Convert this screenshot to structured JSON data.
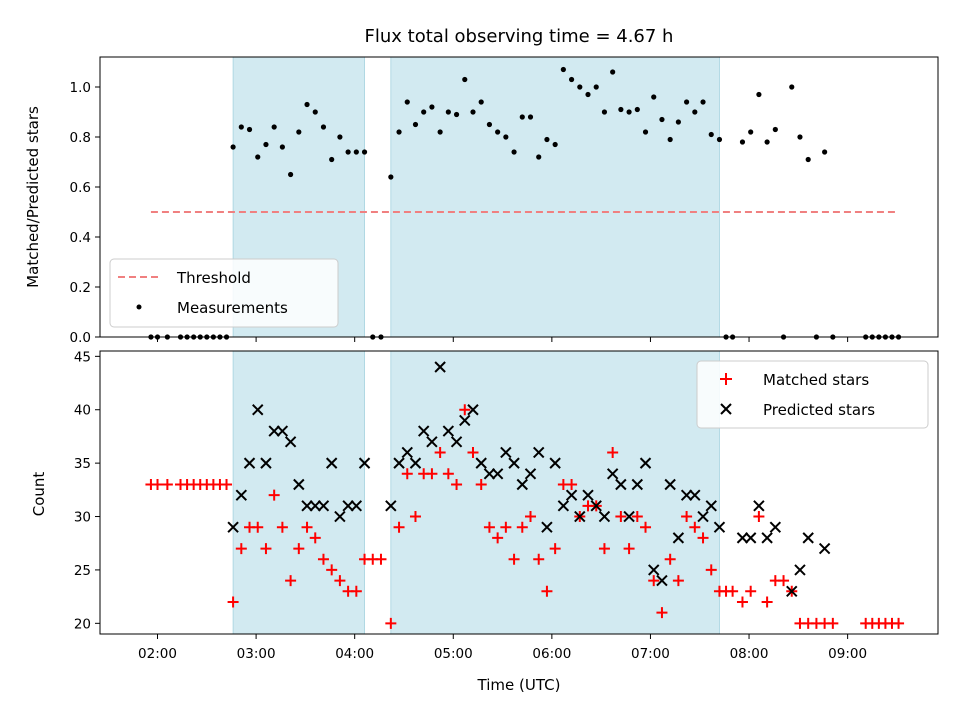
{
  "chart_data": [
    {
      "type": "scatter",
      "title": "Flux total observing time = 4.67 h",
      "xlabel": "",
      "ylabel": "Matched/Predicted stars",
      "ylim": [
        0,
        1.12
      ],
      "yticks": [
        "0.0",
        "0.2",
        "0.4",
        "0.6",
        "0.8",
        "1.0"
      ],
      "legend": {
        "position": "lower-left",
        "entries": [
          "Threshold",
          "Measurements"
        ]
      },
      "threshold": {
        "name": "Threshold",
        "value": 0.5,
        "x_range": [
          "01:56",
          "09:30"
        ],
        "color": "#f08080"
      },
      "shaded_intervals": [
        [
          "02:46",
          "04:06"
        ],
        [
          "04:22",
          "07:42"
        ]
      ],
      "shade_color": "#add8e6",
      "series": [
        {
          "name": "Measurements",
          "color": "#000000",
          "points": [
            [
              "01:56",
              0
            ],
            [
              "02:00",
              0
            ],
            [
              "02:06",
              0
            ],
            [
              "02:14",
              0
            ],
            [
              "02:18",
              0
            ],
            [
              "02:22",
              0
            ],
            [
              "02:26",
              0
            ],
            [
              "02:30",
              0
            ],
            [
              "02:34",
              0
            ],
            [
              "02:38",
              0
            ],
            [
              "02:42",
              0
            ],
            [
              "02:46",
              0.76
            ],
            [
              "02:51",
              0.84
            ],
            [
              "02:56",
              0.83
            ],
            [
              "03:01",
              0.72
            ],
            [
              "03:06",
              0.77
            ],
            [
              "03:11",
              0.84
            ],
            [
              "03:16",
              0.76
            ],
            [
              "03:21",
              0.65
            ],
            [
              "03:26",
              0.82
            ],
            [
              "03:31",
              0.93
            ],
            [
              "03:36",
              0.9
            ],
            [
              "03:41",
              0.84
            ],
            [
              "03:46",
              0.71
            ],
            [
              "03:51",
              0.8
            ],
            [
              "03:56",
              0.74
            ],
            [
              "04:01",
              0.74
            ],
            [
              "04:06",
              0.74
            ],
            [
              "04:11",
              0
            ],
            [
              "04:16",
              0
            ],
            [
              "04:22",
              0.64
            ],
            [
              "04:27",
              0.82
            ],
            [
              "04:32",
              0.94
            ],
            [
              "04:37",
              0.85
            ],
            [
              "04:42",
              0.9
            ],
            [
              "04:47",
              0.92
            ],
            [
              "04:52",
              0.82
            ],
            [
              "04:57",
              0.9
            ],
            [
              "05:02",
              0.89
            ],
            [
              "05:07",
              1.03
            ],
            [
              "05:12",
              0.9
            ],
            [
              "05:17",
              0.94
            ],
            [
              "05:22",
              0.85
            ],
            [
              "05:27",
              0.82
            ],
            [
              "05:32",
              0.8
            ],
            [
              "05:37",
              0.74
            ],
            [
              "05:42",
              0.88
            ],
            [
              "05:47",
              0.88
            ],
            [
              "05:52",
              0.72
            ],
            [
              "05:57",
              0.79
            ],
            [
              "06:02",
              0.77
            ],
            [
              "06:07",
              1.07
            ],
            [
              "06:12",
              1.03
            ],
            [
              "06:17",
              1.0
            ],
            [
              "06:22",
              0.97
            ],
            [
              "06:27",
              1.0
            ],
            [
              "06:32",
              0.9
            ],
            [
              "06:37",
              1.06
            ],
            [
              "06:42",
              0.91
            ],
            [
              "06:47",
              0.9
            ],
            [
              "06:52",
              0.91
            ],
            [
              "06:57",
              0.82
            ],
            [
              "07:02",
              0.96
            ],
            [
              "07:07",
              0.87
            ],
            [
              "07:12",
              0.79
            ],
            [
              "07:17",
              0.86
            ],
            [
              "07:22",
              0.94
            ],
            [
              "07:27",
              0.9
            ],
            [
              "07:32",
              0.94
            ],
            [
              "07:37",
              0.81
            ],
            [
              "07:42",
              0.79
            ],
            [
              "07:46",
              0
            ],
            [
              "07:50",
              0
            ],
            [
              "07:56",
              0.78
            ],
            [
              "08:01",
              0.82
            ],
            [
              "08:06",
              0.97
            ],
            [
              "08:11",
              0.78
            ],
            [
              "08:16",
              0.83
            ],
            [
              "08:21",
              0
            ],
            [
              "08:26",
              1.0
            ],
            [
              "08:31",
              0.8
            ],
            [
              "08:36",
              0.71
            ],
            [
              "08:41",
              0
            ],
            [
              "08:46",
              0.74
            ],
            [
              "08:51",
              0
            ],
            [
              "09:11",
              0
            ],
            [
              "09:15",
              0
            ],
            [
              "09:19",
              0
            ],
            [
              "09:23",
              0
            ],
            [
              "09:27",
              0
            ],
            [
              "09:31",
              0
            ]
          ]
        }
      ]
    },
    {
      "type": "scatter",
      "title": "",
      "xlabel": "Time (UTC)",
      "ylabel": "Count",
      "ylim": [
        19,
        45.5
      ],
      "yticks": [
        "20",
        "25",
        "30",
        "35",
        "40",
        "45"
      ],
      "xlim": [
        "01:25",
        "09:55"
      ],
      "xticks": [
        "02:00",
        "03:00",
        "04:00",
        "05:00",
        "06:00",
        "07:00",
        "08:00",
        "09:00"
      ],
      "legend": {
        "position": "top-right",
        "entries": [
          "Matched stars",
          "Predicted stars"
        ]
      },
      "shaded_intervals": [
        [
          "02:46",
          "04:06"
        ],
        [
          "04:22",
          "07:42"
        ]
      ],
      "shade_color": "#add8e6",
      "series": [
        {
          "name": "Matched stars",
          "color": "#ff0000",
          "marker": "plus",
          "points": [
            [
              "01:56",
              33
            ],
            [
              "02:00",
              33
            ],
            [
              "02:06",
              33
            ],
            [
              "02:14",
              33
            ],
            [
              "02:18",
              33
            ],
            [
              "02:22",
              33
            ],
            [
              "02:26",
              33
            ],
            [
              "02:30",
              33
            ],
            [
              "02:34",
              33
            ],
            [
              "02:38",
              33
            ],
            [
              "02:42",
              33
            ],
            [
              "02:46",
              22
            ],
            [
              "02:51",
              27
            ],
            [
              "02:56",
              29
            ],
            [
              "03:01",
              29
            ],
            [
              "03:06",
              27
            ],
            [
              "03:11",
              32
            ],
            [
              "03:16",
              29
            ],
            [
              "03:21",
              24
            ],
            [
              "03:26",
              27
            ],
            [
              "03:31",
              29
            ],
            [
              "03:36",
              28
            ],
            [
              "03:41",
              26
            ],
            [
              "03:46",
              25
            ],
            [
              "03:51",
              24
            ],
            [
              "03:56",
              23
            ],
            [
              "04:01",
              23
            ],
            [
              "04:06",
              26
            ],
            [
              "04:11",
              26
            ],
            [
              "04:16",
              26
            ],
            [
              "04:22",
              20
            ],
            [
              "04:27",
              29
            ],
            [
              "04:32",
              34
            ],
            [
              "04:37",
              30
            ],
            [
              "04:42",
              34
            ],
            [
              "04:47",
              34
            ],
            [
              "04:52",
              36
            ],
            [
              "04:57",
              34
            ],
            [
              "05:02",
              33
            ],
            [
              "05:07",
              40
            ],
            [
              "05:12",
              36
            ],
            [
              "05:17",
              33
            ],
            [
              "05:22",
              29
            ],
            [
              "05:27",
              28
            ],
            [
              "05:32",
              29
            ],
            [
              "05:37",
              26
            ],
            [
              "05:42",
              29
            ],
            [
              "05:47",
              30
            ],
            [
              "05:52",
              26
            ],
            [
              "05:57",
              23
            ],
            [
              "06:02",
              27
            ],
            [
              "06:07",
              33
            ],
            [
              "06:12",
              33
            ],
            [
              "06:17",
              30
            ],
            [
              "06:22",
              31
            ],
            [
              "06:27",
              31
            ],
            [
              "06:32",
              27
            ],
            [
              "06:37",
              36
            ],
            [
              "06:42",
              30
            ],
            [
              "06:47",
              27
            ],
            [
              "06:52",
              30
            ],
            [
              "06:57",
              29
            ],
            [
              "07:02",
              24
            ],
            [
              "07:07",
              21
            ],
            [
              "07:12",
              26
            ],
            [
              "07:17",
              24
            ],
            [
              "07:22",
              30
            ],
            [
              "07:27",
              29
            ],
            [
              "07:32",
              28
            ],
            [
              "07:37",
              25
            ],
            [
              "07:42",
              23
            ],
            [
              "07:46",
              23
            ],
            [
              "07:50",
              23
            ],
            [
              "07:56",
              22
            ],
            [
              "08:01",
              23
            ],
            [
              "08:06",
              30
            ],
            [
              "08:11",
              22
            ],
            [
              "08:16",
              24
            ],
            [
              "08:21",
              24
            ],
            [
              "08:26",
              23
            ],
            [
              "08:31",
              20
            ],
            [
              "08:36",
              20
            ],
            [
              "08:41",
              20
            ],
            [
              "08:46",
              20
            ],
            [
              "08:51",
              20
            ],
            [
              "09:11",
              20
            ],
            [
              "09:15",
              20
            ],
            [
              "09:19",
              20
            ],
            [
              "09:23",
              20
            ],
            [
              "09:27",
              20
            ],
            [
              "09:31",
              20
            ]
          ]
        },
        {
          "name": "Predicted stars",
          "color": "#000000",
          "marker": "x",
          "points": [
            [
              "02:46",
              29
            ],
            [
              "02:51",
              32
            ],
            [
              "02:56",
              35
            ],
            [
              "03:01",
              40
            ],
            [
              "03:06",
              35
            ],
            [
              "03:11",
              38
            ],
            [
              "03:16",
              38
            ],
            [
              "03:21",
              37
            ],
            [
              "03:26",
              33
            ],
            [
              "03:31",
              31
            ],
            [
              "03:36",
              31
            ],
            [
              "03:41",
              31
            ],
            [
              "03:46",
              35
            ],
            [
              "03:51",
              30
            ],
            [
              "03:56",
              31
            ],
            [
              "04:01",
              31
            ],
            [
              "04:06",
              35
            ],
            [
              "04:22",
              31
            ],
            [
              "04:27",
              35
            ],
            [
              "04:32",
              36
            ],
            [
              "04:37",
              35
            ],
            [
              "04:42",
              38
            ],
            [
              "04:47",
              37
            ],
            [
              "04:52",
              44
            ],
            [
              "04:57",
              38
            ],
            [
              "05:02",
              37
            ],
            [
              "05:07",
              39
            ],
            [
              "05:12",
              40
            ],
            [
              "05:17",
              35
            ],
            [
              "05:22",
              34
            ],
            [
              "05:27",
              34
            ],
            [
              "05:32",
              36
            ],
            [
              "05:37",
              35
            ],
            [
              "05:42",
              33
            ],
            [
              "05:47",
              34
            ],
            [
              "05:52",
              36
            ],
            [
              "05:57",
              29
            ],
            [
              "06:02",
              35
            ],
            [
              "06:07",
              31
            ],
            [
              "06:12",
              32
            ],
            [
              "06:17",
              30
            ],
            [
              "06:22",
              32
            ],
            [
              "06:27",
              31
            ],
            [
              "06:32",
              30
            ],
            [
              "06:37",
              34
            ],
            [
              "06:42",
              33
            ],
            [
              "06:47",
              30
            ],
            [
              "06:52",
              33
            ],
            [
              "06:57",
              35
            ],
            [
              "07:02",
              25
            ],
            [
              "07:07",
              24
            ],
            [
              "07:12",
              33
            ],
            [
              "07:17",
              28
            ],
            [
              "07:22",
              32
            ],
            [
              "07:27",
              32
            ],
            [
              "07:32",
              30
            ],
            [
              "07:37",
              31
            ],
            [
              "07:42",
              29
            ],
            [
              "07:56",
              28
            ],
            [
              "08:01",
              28
            ],
            [
              "08:06",
              31
            ],
            [
              "08:11",
              28
            ],
            [
              "08:16",
              29
            ],
            [
              "08:26",
              23
            ],
            [
              "08:31",
              25
            ],
            [
              "08:36",
              28
            ],
            [
              "08:46",
              27
            ]
          ]
        }
      ]
    }
  ]
}
